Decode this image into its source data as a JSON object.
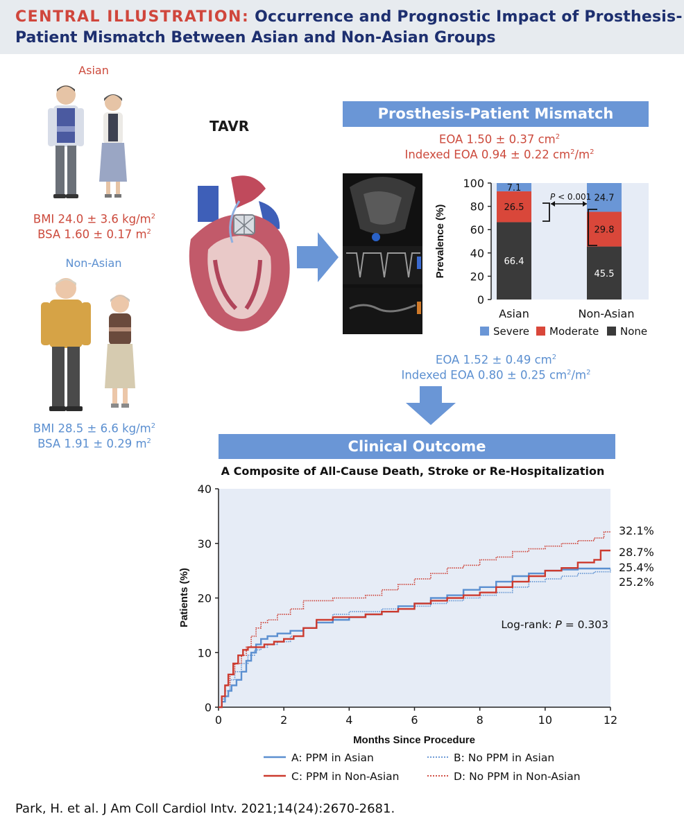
{
  "header": {
    "label": "CENTRAL ILLUSTRATION:",
    "title_line1": "Occurrence and Prognostic Impact of Prosthesis-",
    "title_line2": "Patient Mismatch Between Asian and Non-Asian Groups"
  },
  "asian": {
    "label": "Asian",
    "bmi": "BMI 24.0 ± 3.6 kg/m",
    "bsa": "BSA 1.60 ± 0.17 m"
  },
  "nonasian": {
    "label": "Non-Asian",
    "bmi": "BMI 28.5 ± 6.6 kg/m",
    "bsa": "BSA 1.91 ± 0.29 m"
  },
  "tavr_label": "TAVR",
  "ppm_banner": "Prosthesis-Patient Mismatch",
  "asian_eoa": {
    "eoa": "EOA 1.50 ± 0.37 cm",
    "indexed": "Indexed EOA 0.94 ± 0.22 cm",
    "unit_tail": "/m"
  },
  "nonasian_eoa": {
    "eoa": "EOA 1.52 ± 0.49 cm",
    "indexed": "Indexed EOA 0.80 ± 0.25 cm",
    "unit_tail": "/m"
  },
  "sup2": "2",
  "outcome_banner": "Clinical Outcome",
  "colors": {
    "severe": "#6a96d6",
    "moderate": "#d9473a",
    "none": "#3a3a3a",
    "plot_bg": "#e6ecf6",
    "blue_line": "#5b8fd0",
    "red_line": "#cc3a2e"
  },
  "chart_data": [
    {
      "type": "bar",
      "stacked": true,
      "ylabel": "Prevalence (%)",
      "ylim": [
        0,
        100
      ],
      "yticks": [
        "0",
        "20",
        "40",
        "60",
        "80",
        "100"
      ],
      "categories": [
        "Asian",
        "Non-Asian"
      ],
      "series": [
        {
          "name": "None",
          "values": [
            66.4,
            45.5
          ]
        },
        {
          "name": "Moderate",
          "values": [
            26.5,
            29.8
          ]
        },
        {
          "name": "Severe",
          "values": [
            7.1,
            24.7
          ]
        }
      ],
      "value_labels": [
        [
          "66.4",
          "26.5",
          "7.1"
        ],
        [
          "45.5",
          "29.8",
          "24.7"
        ]
      ],
      "legend": [
        "Severe",
        "Moderate",
        "None"
      ],
      "p_prefix": "P",
      "p_value": " < 0.001"
    },
    {
      "type": "line",
      "title": "A Composite of All-Cause Death, Stroke or Re-Hospitalization",
      "xlabel": "Months Since Procedure",
      "ylabel": "Patients (%)",
      "xlim": [
        0,
        12
      ],
      "ylim": [
        0,
        40
      ],
      "xticks": [
        "0",
        "2",
        "4",
        "6",
        "8",
        "10",
        "12"
      ],
      "yticks": [
        "0",
        "10",
        "20",
        "30",
        "40"
      ],
      "annotation_prefix": "Log-rank: ",
      "annotation_p": "P",
      "annotation_value": " = 0.303",
      "end_labels": [
        "32.1%",
        "28.7%",
        "25.4%",
        "25.2%"
      ],
      "series": [
        {
          "name": "A: PPM in Asian",
          "style": "solid-blue",
          "x": [
            0,
            0.1,
            0.2,
            0.3,
            0.4,
            0.55,
            0.7,
            0.85,
            1.0,
            1.15,
            1.3,
            1.5,
            1.8,
            2.2,
            2.6,
            3.0,
            3.5,
            4.0,
            4.5,
            5.0,
            5.5,
            6.0,
            6.5,
            7.0,
            7.5,
            8.0,
            8.5,
            9.0,
            9.5,
            10.0,
            10.5,
            11.0,
            11.5,
            12.0
          ],
          "y": [
            0,
            1.0,
            2.0,
            3.0,
            4.0,
            5.0,
            6.5,
            8.5,
            10.0,
            11.5,
            12.5,
            13.0,
            13.5,
            14.0,
            14.5,
            15.5,
            16.0,
            16.5,
            17.0,
            17.5,
            18.5,
            19.0,
            20.0,
            20.5,
            21.5,
            22.0,
            23.0,
            24.0,
            24.5,
            25.0,
            25.2,
            25.4,
            25.4,
            25.4
          ]
        },
        {
          "name": "B: No PPM in Asian",
          "style": "dotted-blue",
          "x": [
            0,
            0.1,
            0.2,
            0.35,
            0.5,
            0.7,
            0.9,
            1.1,
            1.3,
            1.5,
            1.8,
            2.2,
            2.6,
            3.0,
            3.5,
            4.0,
            4.5,
            5.0,
            5.5,
            6.0,
            6.5,
            7.0,
            7.5,
            8.0,
            8.5,
            9.0,
            9.5,
            10.0,
            10.5,
            11.0,
            11.5,
            12.0
          ],
          "y": [
            0,
            1.5,
            3.0,
            5.0,
            6.5,
            8.0,
            9.5,
            10.5,
            11.0,
            11.5,
            12.0,
            13.0,
            14.5,
            16.0,
            17.0,
            17.5,
            17.5,
            18.0,
            18.0,
            18.5,
            19.0,
            19.5,
            20.0,
            20.5,
            21.0,
            22.0,
            23.0,
            23.5,
            24.0,
            24.5,
            24.8,
            25.2
          ]
        },
        {
          "name": "C: PPM in Non-Asian",
          "style": "solid-red",
          "x": [
            0,
            0.1,
            0.2,
            0.3,
            0.45,
            0.6,
            0.75,
            0.9,
            1.1,
            1.4,
            1.7,
            2.0,
            2.3,
            2.6,
            3.0,
            3.5,
            4.0,
            4.5,
            5.0,
            5.5,
            6.0,
            6.5,
            7.0,
            7.5,
            8.0,
            8.5,
            9.0,
            9.5,
            10.0,
            10.5,
            11.0,
            11.5,
            11.7,
            12.0
          ],
          "y": [
            0,
            2.0,
            4.0,
            6.0,
            8.0,
            9.5,
            10.5,
            11.0,
            11.0,
            11.5,
            12.0,
            12.5,
            13.0,
            14.5,
            16.0,
            16.5,
            16.5,
            17.0,
            17.5,
            18.0,
            19.0,
            19.5,
            20.0,
            20.5,
            21.0,
            22.0,
            23.0,
            24.0,
            25.0,
            25.5,
            26.5,
            27.0,
            28.7,
            28.7
          ]
        },
        {
          "name": "D: No PPM in Non-Asian",
          "style": "dotted-red",
          "x": [
            0,
            0.1,
            0.2,
            0.35,
            0.5,
            0.7,
            0.85,
            1.0,
            1.15,
            1.3,
            1.5,
            1.8,
            2.2,
            2.6,
            3.0,
            3.5,
            4.0,
            4.5,
            5.0,
            5.5,
            6.0,
            6.5,
            7.0,
            7.5,
            8.0,
            8.5,
            9.0,
            9.5,
            10.0,
            10.5,
            11.0,
            11.5,
            11.8,
            12.0
          ],
          "y": [
            0,
            2.0,
            4.0,
            6.0,
            8.0,
            9.5,
            11.0,
            13.0,
            14.5,
            15.5,
            16.0,
            17.0,
            18.0,
            19.5,
            19.5,
            20.0,
            20.0,
            20.5,
            21.5,
            22.5,
            23.5,
            24.5,
            25.5,
            26.0,
            27.0,
            27.5,
            28.5,
            29.0,
            29.5,
            30.0,
            30.5,
            31.0,
            32.1,
            32.1
          ]
        }
      ]
    }
  ],
  "citation": "Park, H. et al. J Am Coll Cardiol Intv. 2021;14(24):2670-2681."
}
